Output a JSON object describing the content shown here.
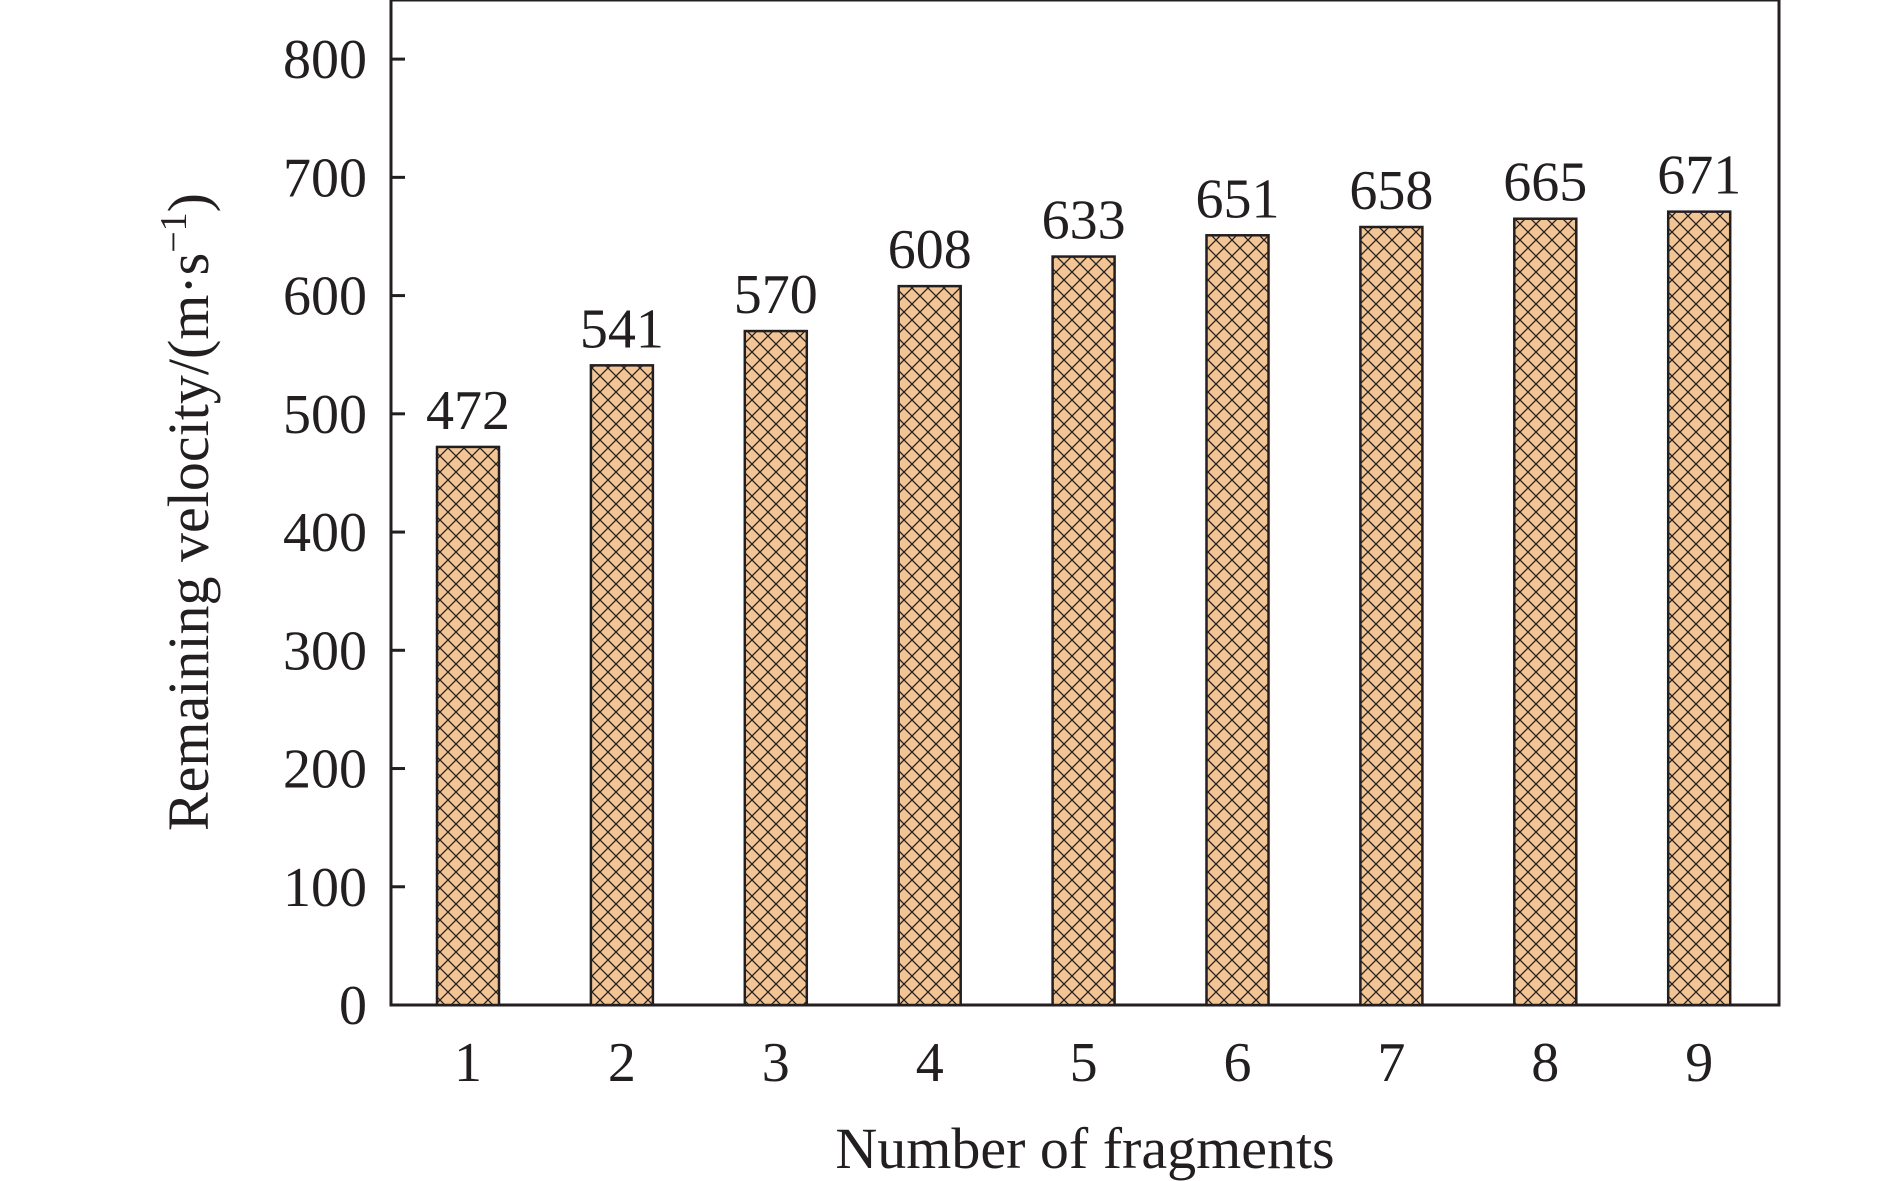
{
  "chart_data": {
    "type": "bar",
    "categories": [
      "1",
      "2",
      "3",
      "4",
      "5",
      "6",
      "7",
      "8",
      "9"
    ],
    "values": [
      472,
      541,
      570,
      608,
      633,
      651,
      658,
      665,
      671
    ],
    "data_labels": [
      "472",
      "541",
      "570",
      "608",
      "633",
      "651",
      "658",
      "665",
      "671"
    ],
    "xlabel": "Number of fragments",
    "ylabel": {
      "main": "Remaining velocity/(m·s",
      "sup": "−1",
      "close": ")"
    },
    "ylim": [
      0,
      850
    ],
    "yticks": [
      0,
      100,
      200,
      300,
      400,
      500,
      600,
      700,
      800
    ],
    "ytick_labels": [
      "0",
      "100",
      "200",
      "300",
      "400",
      "500",
      "600",
      "700",
      "800"
    ],
    "grid": false,
    "bar_fill": "#f3c595",
    "bar_pattern": "crosshatch",
    "bar_pattern_color": "#231f20",
    "text_color": "#231f20"
  }
}
